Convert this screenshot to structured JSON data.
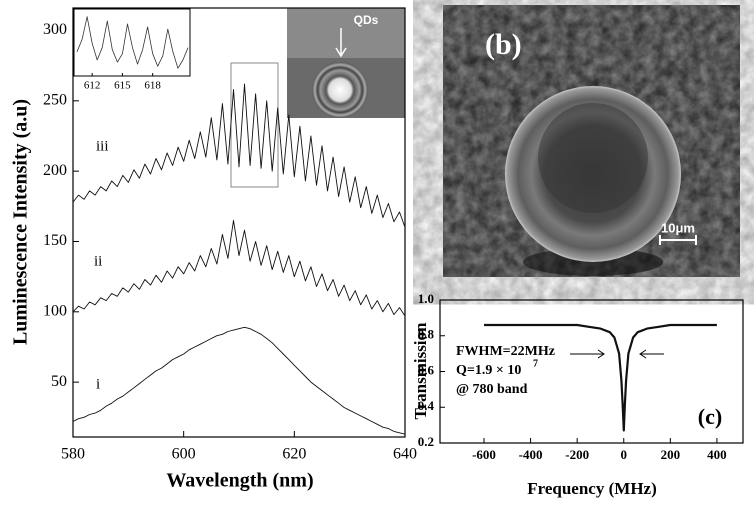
{
  "chart_data": [
    {
      "type": "line",
      "ylabel": "Luminescence Intensity (a.u)",
      "xlabel": "Wavelength (nm)",
      "xlim": [
        580,
        640
      ],
      "xticks": [
        580,
        600,
        620,
        640
      ],
      "ylim": [
        11,
        316
      ],
      "yticks": [
        50,
        100,
        150,
        200,
        250,
        300
      ],
      "x": [
        580,
        581,
        582,
        583,
        584,
        585,
        586,
        587,
        588,
        589,
        590,
        591,
        592,
        593,
        594,
        595,
        596,
        597,
        598,
        599,
        600,
        601,
        602,
        603,
        604,
        605,
        606,
        607,
        608,
        609,
        610,
        611,
        612,
        613,
        614,
        615,
        616,
        617,
        618,
        619,
        620,
        621,
        622,
        623,
        624,
        625,
        626,
        627,
        628,
        629,
        630,
        631,
        632,
        633,
        634,
        635,
        636,
        637,
        638,
        639,
        640
      ],
      "series": [
        {
          "name": "i",
          "color": "#111111",
          "values": [
            22,
            24,
            25,
            27,
            28,
            30,
            33,
            35,
            38,
            40,
            43,
            46,
            49,
            52,
            55,
            58,
            60,
            63,
            66,
            68,
            70,
            73,
            75,
            77,
            79,
            81,
            83,
            84,
            86,
            87,
            88,
            89,
            88,
            86,
            84,
            81,
            78,
            74,
            70,
            66,
            62,
            58,
            54,
            50,
            47,
            44,
            41,
            38,
            35,
            32,
            30,
            28,
            26,
            24,
            22,
            20,
            18,
            17,
            15,
            14,
            13
          ]
        },
        {
          "name": "ii",
          "color": "#111111",
          "values": [
            100,
            104,
            102,
            107,
            105,
            110,
            108,
            113,
            111,
            117,
            114,
            120,
            116,
            123,
            119,
            126,
            121,
            129,
            124,
            132,
            127,
            135,
            129,
            140,
            132,
            145,
            134,
            155,
            138,
            165,
            140,
            158,
            136,
            150,
            133,
            147,
            130,
            143,
            128,
            140,
            125,
            136,
            122,
            132,
            118,
            127,
            115,
            123,
            111,
            119,
            108,
            115,
            105,
            112,
            102,
            108,
            100,
            106,
            98,
            103,
            97
          ]
        },
        {
          "name": "iii",
          "color": "#111111",
          "values": [
            178,
            183,
            180,
            186,
            183,
            189,
            186,
            193,
            189,
            197,
            192,
            201,
            195,
            205,
            198,
            209,
            201,
            213,
            204,
            217,
            207,
            222,
            209,
            228,
            210,
            238,
            208,
            248,
            205,
            258,
            203,
            262,
            204,
            255,
            202,
            250,
            200,
            245,
            198,
            240,
            196,
            232,
            193,
            225,
            190,
            218,
            186,
            210,
            182,
            203,
            178,
            196,
            174,
            189,
            170,
            183,
            167,
            177,
            164,
            171,
            160
          ]
        }
      ]
    },
    {
      "type": "line",
      "xlim": [
        610.2,
        621.7
      ],
      "xticks": [
        612,
        615,
        618
      ],
      "x": [
        610.5,
        611,
        611.5,
        612,
        612.5,
        613,
        613.5,
        614,
        614.5,
        615,
        615.5,
        616,
        616.5,
        617,
        617.5,
        618,
        618.5,
        619,
        619.5,
        620,
        620.5,
        621,
        621.5
      ],
      "series": [
        {
          "color": "#333333",
          "values": [
            228,
            240,
            262,
            236,
            220,
            232,
            258,
            230,
            218,
            226,
            255,
            232,
            216,
            230,
            252,
            226,
            214,
            224,
            250,
            228,
            212,
            220,
            232
          ]
        }
      ]
    },
    {
      "type": "line",
      "ylabel": "Transmission",
      "xlabel": "Frequency (MHz)",
      "xlim": [
        -789,
        512
      ],
      "xticks": [
        -600,
        -400,
        -200,
        0,
        200,
        400
      ],
      "ylim": [
        0.2,
        1.0
      ],
      "yticks": [
        0.2,
        0.4,
        0.6,
        0.8,
        {
          "value": 1.0,
          "label": "1.0"
        }
      ],
      "annotations": [
        "FWHM=22MHz",
        "Q=1.9 × 10",
        "7",
        "@ 780 band"
      ],
      "panel": "(c)",
      "x": [
        -600,
        -500,
        -400,
        -300,
        -200,
        -150,
        -100,
        -60,
        -40,
        -20,
        -10,
        -5,
        0,
        5,
        10,
        20,
        40,
        60,
        100,
        150,
        200,
        300,
        400
      ],
      "series": [
        {
          "color": "#111111",
          "values": [
            0.86,
            0.86,
            0.86,
            0.86,
            0.86,
            0.85,
            0.84,
            0.82,
            0.79,
            0.7,
            0.55,
            0.42,
            0.27,
            0.42,
            0.55,
            0.7,
            0.79,
            0.82,
            0.84,
            0.85,
            0.86,
            0.86,
            0.86
          ]
        }
      ]
    }
  ],
  "images": {
    "inset_label": "QDs",
    "panel_b": "(b)",
    "scale_bar": "10μm"
  }
}
